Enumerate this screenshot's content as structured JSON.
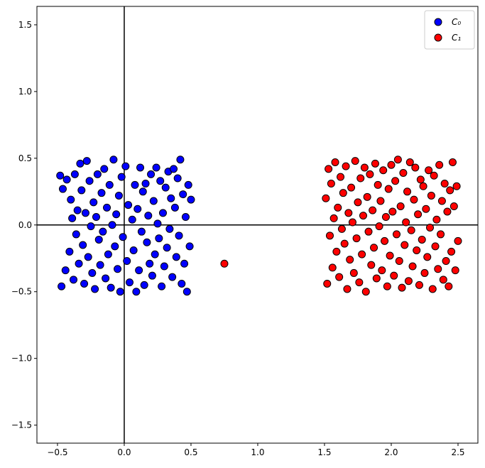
{
  "chart_data": {
    "type": "scatter",
    "xlim": [
      -0.654,
      2.649
    ],
    "ylim": [
      -1.635,
      1.638
    ],
    "xticks": [
      {
        "value": -0.5,
        "label": "−0.5"
      },
      {
        "value": 0,
        "label": "0.0"
      },
      0.5,
      {
        "value": 1,
        "label": "1.0"
      },
      1.5,
      {
        "value": 2,
        "label": "2.0"
      },
      2.5
    ],
    "yticks": [
      {
        "value": -1.5,
        "label": "−1.5"
      },
      {
        "value": -1,
        "label": "−1.0"
      },
      {
        "value": -0.5,
        "label": "−0.5"
      },
      {
        "value": 0,
        "label": "0.0"
      },
      0.5,
      {
        "value": 1,
        "label": "1.0"
      },
      1.5
    ],
    "hline": 0,
    "vline": 0,
    "legend": "upper right",
    "edgecolor": "#000000",
    "series": [
      {
        "name": "C₀",
        "color": "#0000ff",
        "x": [
          -0.48,
          -0.47,
          -0.46,
          -0.44,
          -0.43,
          -0.41,
          -0.4,
          -0.39,
          -0.38,
          -0.37,
          -0.36,
          -0.35,
          -0.34,
          -0.33,
          -0.32,
          -0.31,
          -0.3,
          -0.29,
          -0.28,
          -0.27,
          -0.26,
          -0.25,
          -0.24,
          -0.23,
          -0.22,
          -0.21,
          -0.2,
          -0.19,
          -0.18,
          -0.17,
          -0.16,
          -0.15,
          -0.14,
          -0.13,
          -0.12,
          -0.11,
          -0.1,
          -0.09,
          -0.08,
          -0.07,
          -0.06,
          -0.05,
          -0.04,
          -0.03,
          -0.02,
          -0.01,
          0.01,
          0.02,
          0.03,
          0.04,
          0.06,
          0.07,
          0.08,
          0.09,
          0.1,
          0.11,
          0.12,
          0.13,
          0.14,
          0.15,
          0.16,
          0.17,
          0.18,
          0.19,
          0.2,
          0.21,
          0.22,
          0.23,
          0.24,
          0.25,
          0.26,
          0.27,
          0.28,
          0.29,
          0.3,
          0.31,
          0.32,
          0.33,
          0.34,
          0.35,
          0.36,
          0.37,
          0.38,
          0.39,
          0.4,
          0.41,
          0.42,
          0.43,
          0.44,
          0.45,
          0.46,
          0.47,
          0.48,
          0.49,
          0.5
        ],
        "y": [
          0.37,
          -0.46,
          0.27,
          -0.34,
          0.34,
          -0.2,
          0.19,
          0.05,
          -0.41,
          0.38,
          -0.07,
          0.11,
          -0.29,
          0.46,
          0.26,
          -0.15,
          -0.44,
          0.09,
          0.48,
          -0.24,
          0.33,
          -0.01,
          -0.36,
          0.17,
          -0.48,
          0.06,
          0.38,
          -0.11,
          -0.3,
          0.24,
          -0.05,
          0.42,
          -0.4,
          0.13,
          -0.22,
          0.3,
          -0.47,
          0.0,
          0.49,
          -0.16,
          0.08,
          -0.33,
          0.22,
          -0.5,
          0.36,
          -0.09,
          0.44,
          -0.27,
          0.15,
          -0.43,
          0.04,
          -0.19,
          0.3,
          -0.5,
          0.12,
          -0.34,
          0.43,
          -0.05,
          0.25,
          -0.45,
          0.31,
          -0.13,
          0.07,
          -0.29,
          0.38,
          -0.38,
          0.18,
          -0.22,
          0.43,
          0.01,
          -0.1,
          0.33,
          -0.46,
          0.09,
          -0.31,
          0.28,
          -0.17,
          0.4,
          -0.03,
          0.2,
          -0.39,
          0.42,
          0.13,
          -0.24,
          0.35,
          -0.08,
          0.49,
          -0.44,
          0.23,
          -0.29,
          0.06,
          -0.5,
          0.3,
          -0.16,
          0.19
        ]
      },
      {
        "name": "C₁",
        "color": "#ff0000",
        "x": [
          1.51,
          1.52,
          1.53,
          1.54,
          1.55,
          1.56,
          1.57,
          1.58,
          1.59,
          1.6,
          1.61,
          1.62,
          1.63,
          1.64,
          1.65,
          1.66,
          1.67,
          1.68,
          1.69,
          1.7,
          1.71,
          1.72,
          1.73,
          1.74,
          1.75,
          1.76,
          1.77,
          1.78,
          1.79,
          1.8,
          1.81,
          1.82,
          1.83,
          1.84,
          1.85,
          1.86,
          1.87,
          1.88,
          1.89,
          1.9,
          1.91,
          1.92,
          1.93,
          1.94,
          1.95,
          1.96,
          1.97,
          1.98,
          1.99,
          2.0,
          2.01,
          2.02,
          2.03,
          2.04,
          2.05,
          2.06,
          2.07,
          2.08,
          2.09,
          2.1,
          2.11,
          2.12,
          2.13,
          2.14,
          2.15,
          2.16,
          2.17,
          2.18,
          2.19,
          2.2,
          2.21,
          2.22,
          2.23,
          2.24,
          2.25,
          2.26,
          2.27,
          2.28,
          2.29,
          2.3,
          2.31,
          2.32,
          2.33,
          2.34,
          2.35,
          2.36,
          2.37,
          2.38,
          2.39,
          2.4,
          2.41,
          2.42,
          2.43,
          2.44,
          2.45,
          2.46,
          2.47,
          2.48,
          2.49,
          2.5,
          0.75
        ],
        "y": [
          0.2,
          -0.44,
          0.42,
          -0.08,
          0.31,
          -0.32,
          0.05,
          0.47,
          -0.2,
          0.13,
          -0.39,
          0.36,
          -0.03,
          0.24,
          -0.14,
          0.44,
          -0.48,
          0.09,
          -0.26,
          0.28,
          0.02,
          -0.36,
          0.48,
          -0.1,
          0.17,
          -0.43,
          0.35,
          -0.22,
          0.07,
          0.43,
          -0.5,
          0.21,
          -0.05,
          0.38,
          -0.3,
          0.11,
          -0.17,
          0.46,
          -0.4,
          0.3,
          -0.01,
          0.18,
          -0.34,
          0.41,
          -0.12,
          0.06,
          -0.46,
          0.27,
          -0.23,
          0.45,
          0.1,
          -0.38,
          0.33,
          -0.07,
          0.49,
          -0.27,
          0.14,
          -0.47,
          0.39,
          -0.15,
          0.02,
          0.25,
          -0.42,
          0.47,
          -0.04,
          -0.31,
          0.19,
          0.43,
          -0.19,
          0.08,
          -0.45,
          0.34,
          -0.11,
          0.29,
          -0.36,
          0.12,
          -0.24,
          0.41,
          -0.02,
          0.22,
          -0.48,
          0.37,
          -0.16,
          0.04,
          -0.33,
          0.45,
          -0.07,
          0.18,
          -0.41,
          0.31,
          -0.27,
          0.1,
          -0.46,
          0.26,
          -0.2,
          0.47,
          0.14,
          -0.34,
          0.29,
          -0.12,
          -0.29
        ]
      }
    ]
  }
}
